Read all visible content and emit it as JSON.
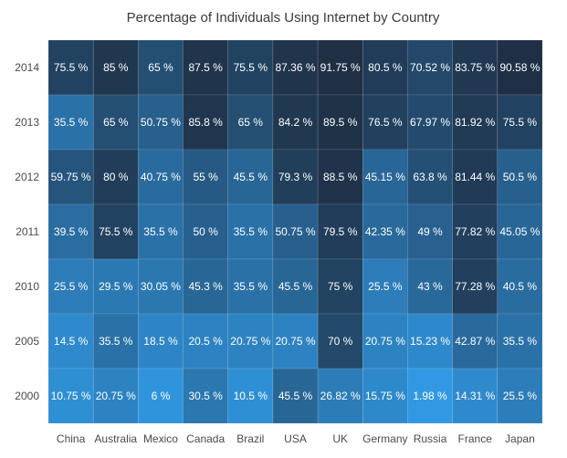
{
  "chart_data": {
    "type": "heatmap",
    "title": "Percentage of Individuals Using Internet by Country",
    "x_categories": [
      "China",
      "Australia",
      "Mexico",
      "Canada",
      "Brazil",
      "USA",
      "UK",
      "Germany",
      "Russia",
      "France",
      "Japan"
    ],
    "y_categories": [
      "2014",
      "2013",
      "2012",
      "2011",
      "2010",
      "2005",
      "2000"
    ],
    "value_suffix": " %",
    "values": [
      [
        75.5,
        85,
        65,
        87.5,
        75.5,
        87.36,
        91.75,
        80.5,
        70.52,
        83.75,
        90.58
      ],
      [
        35.5,
        65,
        50.75,
        85.8,
        65,
        84.2,
        89.5,
        76.5,
        67.97,
        81.92,
        75.5
      ],
      [
        59.75,
        80,
        40.75,
        55,
        45.5,
        79.3,
        88.5,
        45.15,
        63.8,
        81.44,
        50.5
      ],
      [
        39.5,
        75.5,
        35.5,
        50,
        35.5,
        50.75,
        79.5,
        42.35,
        49,
        77.82,
        45.05
      ],
      [
        25.5,
        29.5,
        30.05,
        45.3,
        35.5,
        45.5,
        75,
        25.5,
        43,
        77.28,
        40.5
      ],
      [
        14.5,
        35.5,
        18.5,
        20.5,
        20.75,
        20.75,
        70,
        20.75,
        15.23,
        42.87,
        35.5
      ],
      [
        10.75,
        20.75,
        6,
        30.5,
        10.5,
        45.5,
        26.82,
        15.75,
        1.98,
        14.31,
        25.5
      ]
    ],
    "color_low": "#3199e3",
    "color_high": "#1f2f44"
  }
}
